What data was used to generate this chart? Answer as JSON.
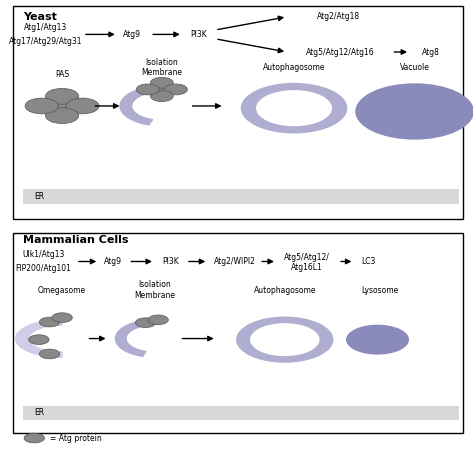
{
  "fig_width": 4.74,
  "fig_height": 4.5,
  "dpi": 100,
  "bg_color": "#ffffff",
  "panel_bg": "#ffffff",
  "er_color": "#d8d8d8",
  "lavender": "#b0aed0",
  "lavender_light": "#d8d6e8",
  "gray_dark": "#808080",
  "gray_med": "#9a9a9a",
  "gray_light": "#b8b8b8",
  "outline_color": "#555555",
  "text_color": "#000000",
  "yeast_title": "Yeast",
  "mammal_title": "Mammalian Cells",
  "legend_text": "= Atg protein",
  "yeast_label1": "Atg1/Atg13",
  "yeast_label2": "Atg17/Atg29/Atg31",
  "yeast_atg9": "Atg9",
  "yeast_pi3k": "PI3K",
  "yeast_atg2_18": "Atg2/Atg18",
  "yeast_atg5_12_16": "Atg5/Atg12/Atg16",
  "yeast_atg8": "Atg8",
  "yeast_pas": "PAS",
  "yeast_isolation": "Isolation\nMembrane",
  "yeast_autophagosome": "Autophagosome",
  "yeast_vacuole": "Vacuole",
  "yeast_er": "ER",
  "mammal_label1": "Ulk1/Atg13",
  "mammal_label2": "FIP200/Atg101",
  "mammal_atg9": "Atg9",
  "mammal_pi3k": "PI3K",
  "mammal_atg2_wipi2": "Atg2/WIPI2",
  "mammal_atg5_12_16l1": "Atg5/Atg12/\nAtg16L1",
  "mammal_lc3": "LC3",
  "mammal_omegasome": "Omegasome",
  "mammal_isolation": "Isolation\nMembrane",
  "mammal_autophagosome": "Autophagosome",
  "mammal_lysosome": "Lysosome",
  "mammal_er": "ER"
}
